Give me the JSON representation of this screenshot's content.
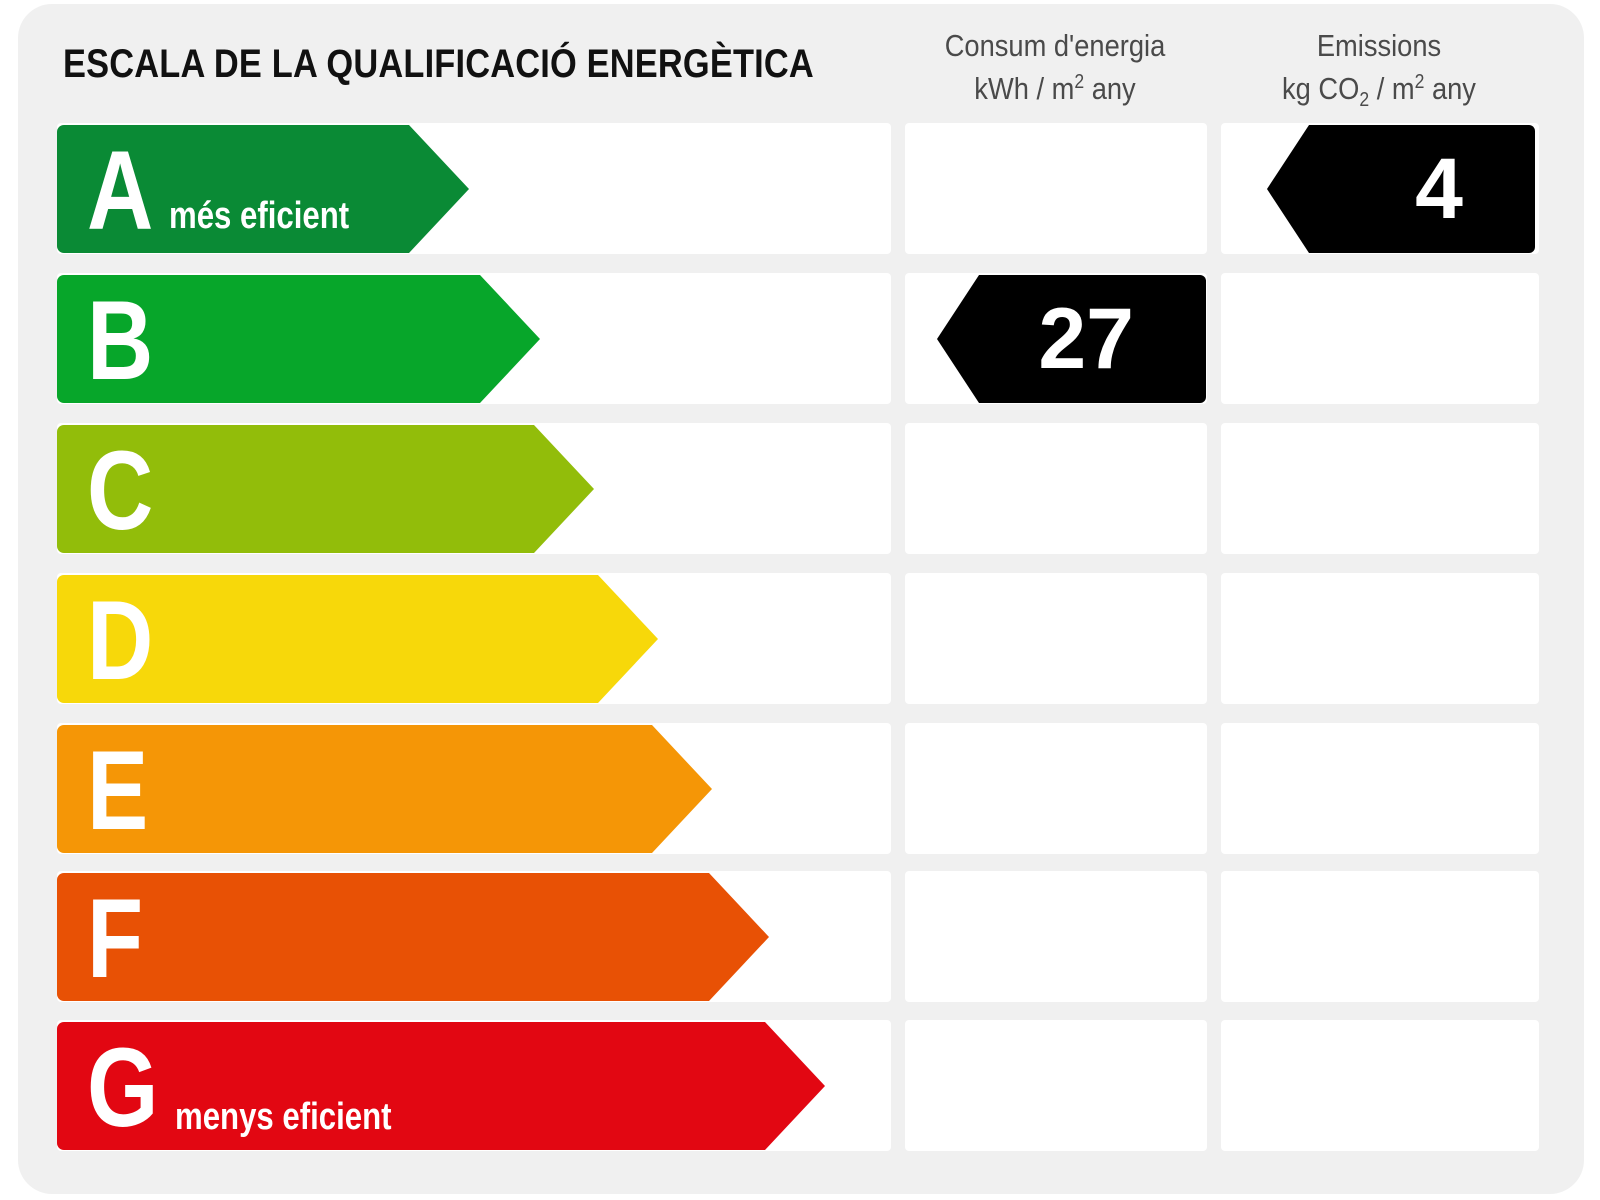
{
  "title": "ESCALA DE LA QUALIFICACIÓ ENERGÈTICA",
  "columns": {
    "energy": {
      "line1": "Consum d'energia",
      "line2_unit": "kWh / m",
      "line2_sup": "2",
      "line2_tail": " any"
    },
    "emissions": {
      "line1": "Emissions",
      "line2_unit": "kg CO",
      "line2_sub": "2",
      "line2_mid": " / m",
      "line2_sup": "2",
      "line2_tail": " any"
    }
  },
  "ratings": [
    {
      "letter": "A",
      "caption": "més eficient",
      "color": "#0a8a35"
    },
    {
      "letter": "B",
      "caption": "",
      "color": "#07a62a"
    },
    {
      "letter": "C",
      "caption": "",
      "color": "#92bd0a"
    },
    {
      "letter": "D",
      "caption": "",
      "color": "#f7d80a"
    },
    {
      "letter": "E",
      "caption": "",
      "color": "#f59606"
    },
    {
      "letter": "F",
      "caption": "",
      "color": "#e85105"
    },
    {
      "letter": "G",
      "caption": "menys eficient",
      "color": "#e20712"
    }
  ],
  "energy_consumption": {
    "value": "27",
    "rating": "B"
  },
  "emissions": {
    "value": "4",
    "rating": "A"
  }
}
